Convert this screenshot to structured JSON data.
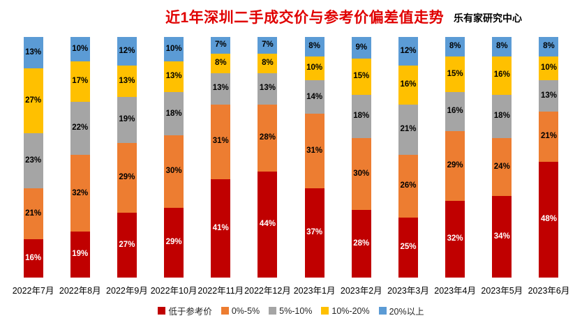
{
  "header": {
    "title": "近1年深圳二手成交价与参考价偏差值走势",
    "subtitle": "乐有家研究中心"
  },
  "colors": {
    "title": "#e00000",
    "subtitle": "#000000",
    "background": "#ffffff"
  },
  "chart_data": {
    "type": "bar",
    "stacked": true,
    "percent_stacked": true,
    "title": "近1年深圳二手成交价与参考价偏差值走势",
    "source_label": "乐有家研究中心",
    "xlabel": "",
    "ylabel": "",
    "ylim": [
      0,
      100
    ],
    "grid": false,
    "legend_position": "bottom",
    "value_suffix": "%",
    "categories": [
      "2022年7月",
      "2022年8月",
      "2022年9月",
      "2022年10月",
      "2022年11月",
      "2022年12月",
      "2023年1月",
      "2023年2月",
      "2023年3月",
      "2023年4月",
      "2023年5月",
      "2023年6月"
    ],
    "series": [
      {
        "name": "低于参考价",
        "color": "#c00000",
        "label_color": "#ffffff",
        "values": [
          16,
          19,
          27,
          29,
          41,
          44,
          37,
          28,
          25,
          32,
          34,
          48
        ]
      },
      {
        "name": "0%-5%",
        "color": "#ed7d31",
        "label_color": "#000000",
        "values": [
          21,
          32,
          29,
          30,
          31,
          28,
          31,
          30,
          26,
          29,
          24,
          21
        ]
      },
      {
        "name": "5%-10%",
        "color": "#a5a5a5",
        "label_color": "#000000",
        "values": [
          23,
          22,
          19,
          18,
          13,
          13,
          14,
          18,
          21,
          16,
          18,
          13
        ]
      },
      {
        "name": "10%-20%",
        "color": "#ffc000",
        "label_color": "#000000",
        "values": [
          27,
          17,
          13,
          13,
          8,
          8,
          10,
          15,
          16,
          15,
          16,
          10
        ]
      },
      {
        "name": "20%以上",
        "color": "#5b9bd5",
        "label_color": "#000000",
        "values": [
          13,
          10,
          12,
          10,
          7,
          7,
          8,
          9,
          12,
          8,
          8,
          8
        ]
      }
    ]
  }
}
